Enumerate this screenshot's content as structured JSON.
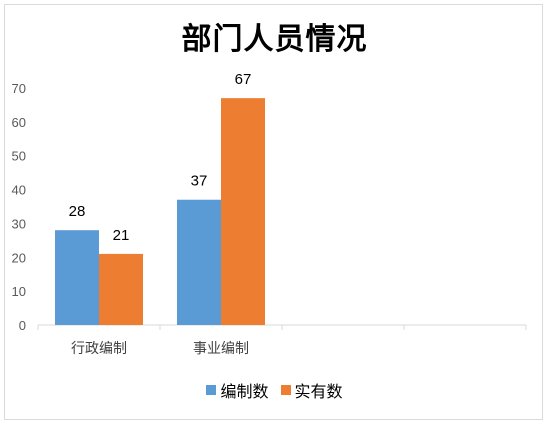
{
  "chart_data": {
    "type": "bar",
    "title": "部门人员情况",
    "categories": [
      "行政编制",
      "事业编制",
      "",
      ""
    ],
    "series": [
      {
        "name": "编制数",
        "values": [
          28,
          37,
          null,
          null
        ],
        "color": "#5b9bd5"
      },
      {
        "name": "实有数",
        "values": [
          21,
          67,
          null,
          null
        ],
        "color": "#ed7d31"
      }
    ],
    "ylim": [
      0,
      70
    ],
    "yticks": [
      0,
      10,
      20,
      30,
      40,
      50,
      60,
      70
    ],
    "grid": false,
    "legend_position": "bottom",
    "data_labels": true
  }
}
